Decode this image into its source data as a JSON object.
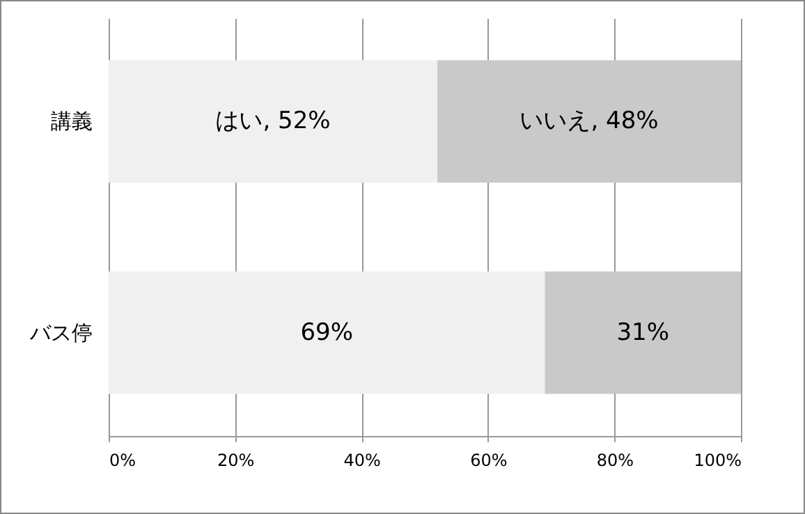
{
  "chart_data": {
    "type": "bar",
    "orientation": "horizontal",
    "stacked": true,
    "categories": [
      "講義",
      "バス停"
    ],
    "series": [
      {
        "color": "#f0f0f0",
        "values": [
          52,
          69
        ],
        "value_labels": [
          "はい, 52%",
          "69%"
        ]
      },
      {
        "color": "#c9c9c9",
        "values": [
          48,
          31
        ],
        "value_labels": [
          "いいえ, 48%",
          "31%"
        ]
      }
    ],
    "xlim": [
      0,
      100
    ],
    "xticks": [
      {
        "value": 0,
        "label": "0%"
      },
      {
        "value": 20,
        "label": "20%"
      },
      {
        "value": 40,
        "label": "40%"
      },
      {
        "value": 60,
        "label": "60%"
      },
      {
        "value": 80,
        "label": "80%"
      },
      {
        "value": 100,
        "label": "100%"
      }
    ],
    "grid": "x"
  }
}
